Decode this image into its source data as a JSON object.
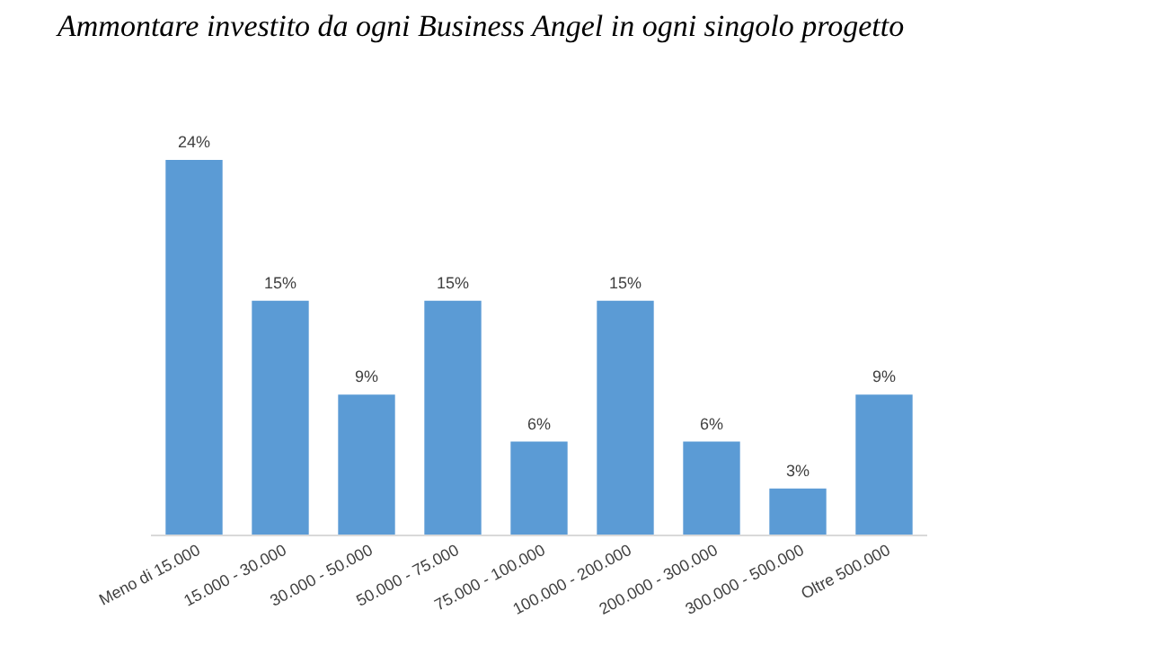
{
  "chart_data": {
    "type": "bar",
    "title": "Ammontare investito da ogni Business Angel in ogni singolo progetto",
    "categories": [
      "Meno di 15.000",
      "15.000 - 30.000",
      "30.000 - 50.000",
      "50.000 - 75.000",
      "75.000 - 100.000",
      "100.000 - 200.000",
      "200.000 - 300.000",
      "300.000 - 500.000",
      "Oltre 500.000"
    ],
    "values": [
      24,
      15,
      9,
      15,
      6,
      15,
      6,
      3,
      9
    ],
    "value_labels": [
      "24%",
      "15%",
      "9%",
      "15%",
      "6%",
      "15%",
      "6%",
      "3%",
      "9%"
    ],
    "color": "#5b9bd5"
  }
}
